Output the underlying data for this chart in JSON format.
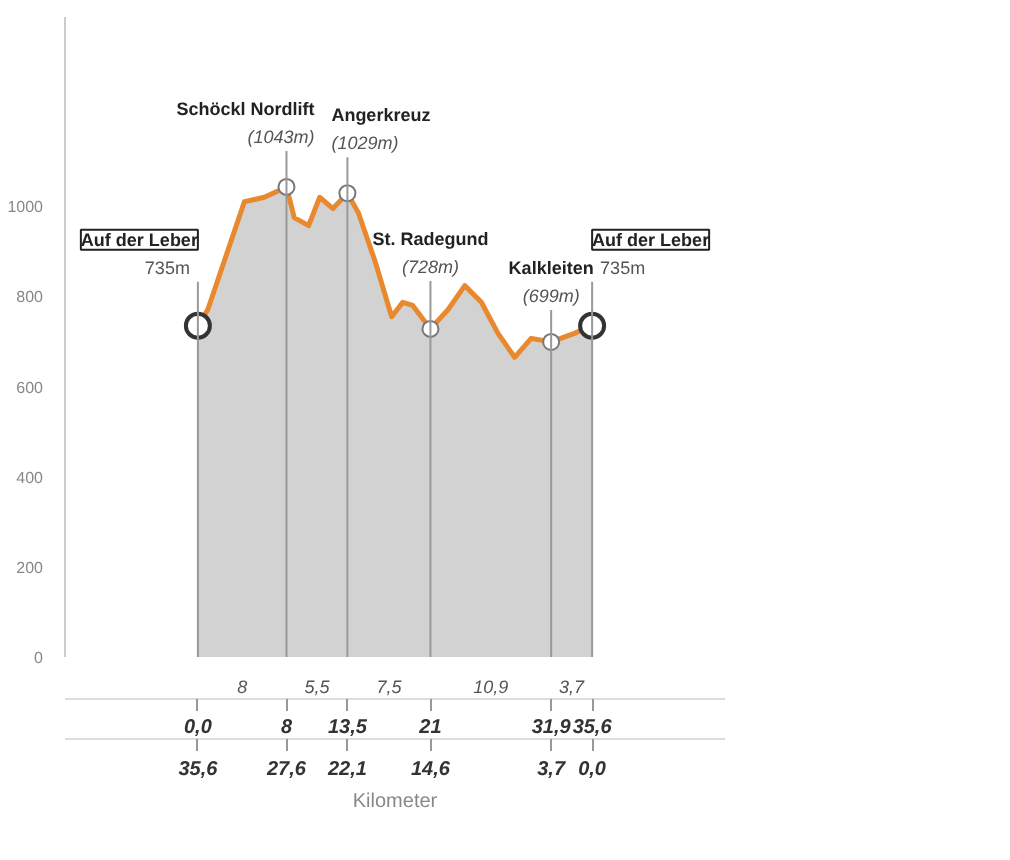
{
  "chart_data": {
    "type": "area",
    "xlabel": "Kilometer",
    "x": [
      0,
      0.9,
      4.2,
      6.0,
      8,
      8.7,
      10,
      11,
      12.2,
      13.5,
      14.5,
      16,
      17.5,
      18.5,
      19.4,
      21,
      22.6,
      24.1,
      25.6,
      27.1,
      28.6,
      30.1,
      31.9,
      34,
      35.6
    ],
    "series": [
      {
        "color": "#e8892f",
        "values": [
          735,
          771,
          1010,
          1020,
          1043,
          975,
          957,
          1020,
          995,
          1029,
          985,
          878,
          755,
          787,
          780,
          728,
          771,
          824,
          787,
          718,
          665,
          707,
          699,
          718,
          735
        ]
      }
    ],
    "xlim": [
      -12,
      47.6
    ],
    "xticks": [
      {
        "value": 0,
        "label": "0,0"
      },
      8,
      {
        "value": 13.5,
        "label": "13,5"
      },
      21,
      {
        "value": 31.9,
        "label": "31,9"
      },
      {
        "value": 35.6,
        "label": "35,6"
      }
    ],
    "x2lim": [
      47.6,
      -12
    ],
    "x2ticks": [
      {
        "value": 35.6,
        "label": "35,6"
      },
      {
        "value": 27.6,
        "label": "27,6"
      },
      {
        "value": 22.1,
        "label": "22,1"
      },
      {
        "value": 14.6,
        "label": "14,6"
      },
      {
        "value": 3.7,
        "label": "3,7"
      },
      {
        "value": 0,
        "label": "0,0"
      }
    ],
    "ylim": [
      0,
      1420
    ],
    "yticks": [
      0,
      200,
      400,
      600,
      800,
      1000
    ],
    "grid": true,
    "annotations": [
      {
        "text": "Auf der Leber\n735m",
        "x": 0,
        "y": 735
      },
      {
        "text": "Schöckl Nordlift\n(1043m)",
        "x": 8,
        "y": 1043
      },
      {
        "text": "Angerkreuz\n(1029m)",
        "x": 13.5,
        "y": 1029
      },
      {
        "text": "St. Radegund\n(728m)",
        "x": 21,
        "y": 728
      },
      {
        "text": "Kalkleiten\n(699m)",
        "x": 31.9,
        "y": 699
      },
      {
        "text": "Auf der Leber\n735m",
        "x": 35.6,
        "y": 735
      },
      "8",
      "5,5",
      "7,5",
      "10,9",
      "3,7"
    ]
  }
}
